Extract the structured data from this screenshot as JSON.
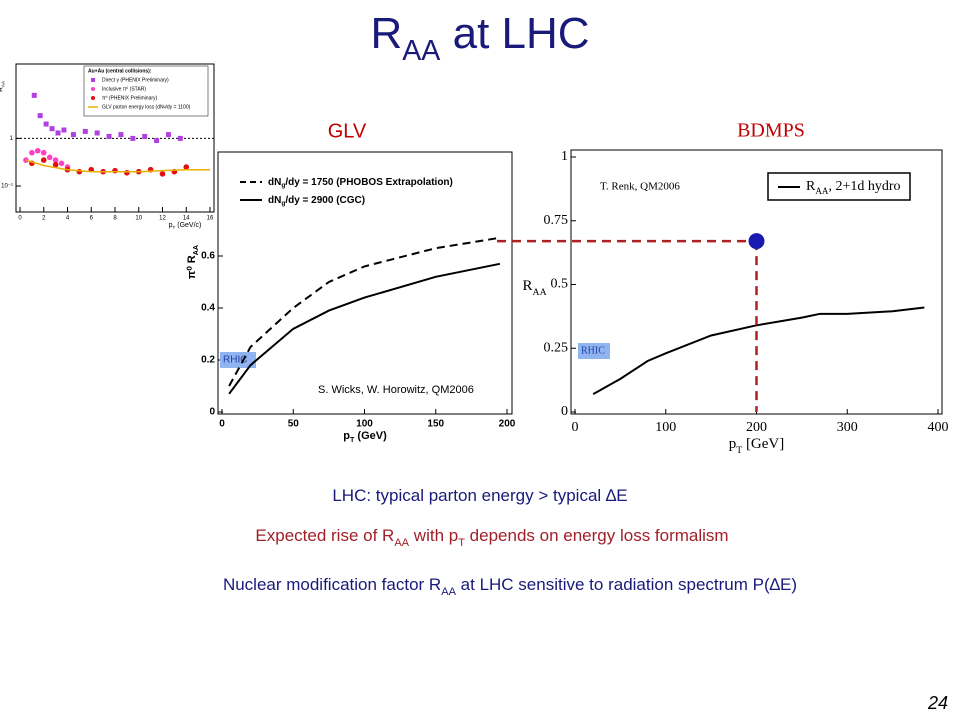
{
  "title": [
    "R",
    "AA",
    " at LHC"
  ],
  "chart_data": [
    {
      "type": "scatter",
      "log_y": true,
      "xlabel": [
        "p",
        "T",
        " (GeV/c)"
      ],
      "ylabel": [
        "R",
        "AA"
      ],
      "legend_title": "Au+Au (central collisions):",
      "xlim": [
        0,
        16
      ],
      "xticks": [
        0,
        2,
        4,
        6,
        8,
        10,
        12,
        14,
        16
      ],
      "ylim": [
        0.04,
        30
      ],
      "yticks": [
        {
          "value": 0.1,
          "label": "10⁻¹"
        },
        1
      ],
      "series": [
        {
          "name": "Direct γ (PHENIX Preliminary)",
          "color": "#b040e0",
          "style": "square",
          "x": [
            1.2,
            1.7,
            2.2,
            2.7,
            3.2,
            3.7,
            4.5,
            5.5,
            6.5,
            7.5,
            8.5,
            9.5,
            10.5,
            11.5,
            12.5,
            13.5
          ],
          "values": [
            8,
            3,
            2,
            1.6,
            1.3,
            1.5,
            1.2,
            1.4,
            1.3,
            1.1,
            1.2,
            1.0,
            1.1,
            0.9,
            1.2,
            1.0
          ]
        },
        {
          "name": "Inclusive π⁰ (STAR)",
          "color": "#ff40c0",
          "style": "circle",
          "x": [
            0.5,
            1,
            1.5,
            2,
            2.5,
            3,
            3.5,
            4
          ],
          "values": [
            0.35,
            0.5,
            0.55,
            0.5,
            0.4,
            0.35,
            0.3,
            0.25
          ]
        },
        {
          "name": "π⁰ (PHENIX Preliminary)",
          "color": "#e01010",
          "style": "circle",
          "x": [
            1,
            2,
            3,
            4,
            5,
            6,
            7,
            8,
            9,
            10,
            11,
            12,
            13,
            14
          ],
          "values": [
            0.3,
            0.35,
            0.28,
            0.22,
            0.2,
            0.22,
            0.2,
            0.21,
            0.19,
            0.2,
            0.22,
            0.18,
            0.2,
            0.25
          ]
        },
        {
          "name": "GLV parton energy loss (dNᵍ/dy = 1100)",
          "color": "#e8b000",
          "style": "line",
          "x": [
            0.5,
            2,
            4,
            6,
            8,
            10,
            12,
            14,
            16
          ],
          "values": [
            0.35,
            0.27,
            0.22,
            0.2,
            0.2,
            0.2,
            0.21,
            0.22,
            0.22
          ]
        }
      ]
    },
    {
      "type": "line",
      "heading": "GLV",
      "xlabel": [
        "p",
        "T",
        " (GeV)"
      ],
      "ylabel": [
        "π⁰ R",
        "AA"
      ],
      "annotation": "S. Wicks, W. Horowitz, QM2006",
      "band_label": "RHIC",
      "xlim": [
        0,
        200
      ],
      "xticks": [
        0,
        50,
        100,
        150,
        200
      ],
      "ylim": [
        0,
        1
      ],
      "yticks": [
        0,
        0.2,
        0.4,
        0.6
      ],
      "series": [
        {
          "name": [
            "dN",
            "g",
            "/dy = 1750 (PHOBOS Extrapolation)"
          ],
          "color": "#000000",
          "style": "dashed",
          "x": [
            5,
            20,
            50,
            75,
            100,
            150,
            195
          ],
          "values": [
            0.1,
            0.25,
            0.4,
            0.5,
            0.56,
            0.63,
            0.67
          ]
        },
        {
          "name": [
            "dN",
            "g",
            "/dy = 2900 (CGC)"
          ],
          "color": "#000000",
          "style": "solid",
          "x": [
            5,
            20,
            50,
            75,
            100,
            150,
            195
          ],
          "values": [
            0.07,
            0.18,
            0.32,
            0.39,
            0.44,
            0.52,
            0.57
          ]
        }
      ]
    },
    {
      "type": "line",
      "heading": "BDMPS",
      "xlabel": [
        "p",
        "T",
        " [GeV]"
      ],
      "ylabel": [
        "R",
        "AA"
      ],
      "annotation": "T. Renk, QM2006",
      "band_label": "RHIC",
      "xlim": [
        0,
        400
      ],
      "xticks": [
        0,
        100,
        200,
        300,
        400
      ],
      "ylim": [
        0,
        1
      ],
      "yticks": [
        0,
        0.25,
        0.5,
        0.75,
        1
      ],
      "highlight": {
        "x": 200,
        "y": 0.67
      },
      "series": [
        {
          "name": [
            "R",
            "AA",
            ", 2+1d hydro"
          ],
          "color": "#000000",
          "style": "solid",
          "x": [
            20,
            50,
            80,
            100,
            150,
            200,
            250,
            270,
            300,
            350,
            385
          ],
          "values": [
            0.07,
            0.13,
            0.2,
            0.23,
            0.3,
            0.34,
            0.37,
            0.385,
            0.385,
            0.395,
            0.41
          ]
        }
      ]
    }
  ],
  "notes": [
    [
      "LHC: typical parton energy > typical ∆E"
    ],
    [
      "Expected rise of R",
      "AA",
      " with p",
      "T",
      " depends on energy loss formalism"
    ],
    [
      "Nuclear modification factor R",
      "AA",
      "  at LHC sensitive to radiation spectrum P(∆E)"
    ]
  ],
  "page_number": "24"
}
